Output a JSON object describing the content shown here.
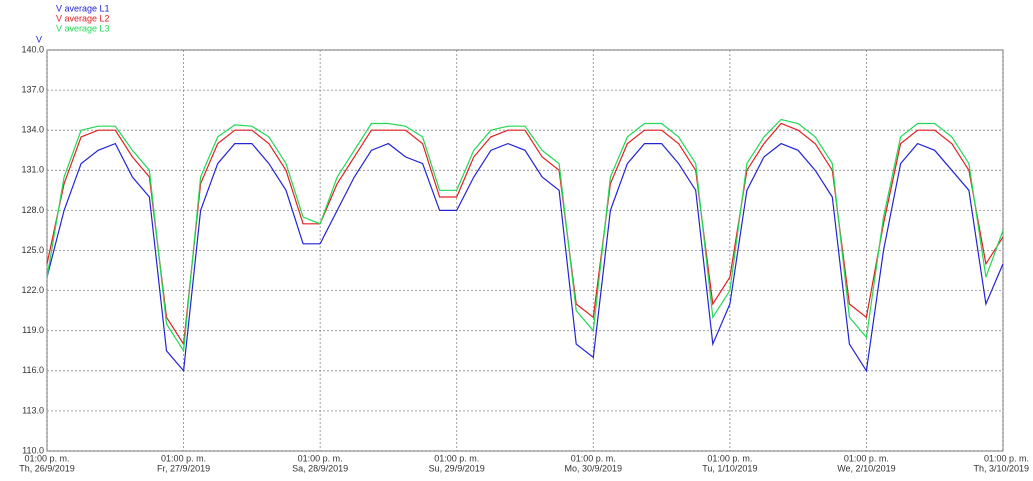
{
  "chart_data": {
    "type": "line",
    "ylabel": "V",
    "x": [
      "2019-09-26 13:00",
      "2019-09-26 16:00",
      "2019-09-26 19:00",
      "2019-09-26 22:00",
      "2019-09-27 01:00",
      "2019-09-27 04:00",
      "2019-09-27 07:00",
      "2019-09-27 10:00",
      "2019-09-27 13:00",
      "2019-09-27 16:00",
      "2019-09-27 19:00",
      "2019-09-27 22:00",
      "2019-09-28 01:00",
      "2019-09-28 04:00",
      "2019-09-28 07:00",
      "2019-09-28 10:00",
      "2019-09-28 13:00",
      "2019-09-28 16:00",
      "2019-09-28 19:00",
      "2019-09-28 22:00",
      "2019-09-29 01:00",
      "2019-09-29 04:00",
      "2019-09-29 07:00",
      "2019-09-29 10:00",
      "2019-09-29 13:00",
      "2019-09-29 16:00",
      "2019-09-29 19:00",
      "2019-09-29 22:00",
      "2019-09-30 01:00",
      "2019-09-30 04:00",
      "2019-09-30 07:00",
      "2019-09-30 10:00",
      "2019-09-30 13:00",
      "2019-09-30 16:00",
      "2019-09-30 19:00",
      "2019-09-30 22:00",
      "2019-10-01 01:00",
      "2019-10-01 04:00",
      "2019-10-01 07:00",
      "2019-10-01 10:00",
      "2019-10-01 13:00",
      "2019-10-01 16:00",
      "2019-10-01 19:00",
      "2019-10-01 22:00",
      "2019-10-02 01:00",
      "2019-10-02 04:00",
      "2019-10-02 07:00",
      "2019-10-02 10:00",
      "2019-10-02 13:00",
      "2019-10-02 16:00",
      "2019-10-02 19:00",
      "2019-10-02 22:00",
      "2019-10-03 01:00",
      "2019-10-03 04:00",
      "2019-10-03 07:00",
      "2019-10-03 10:00",
      "2019-10-03 13:00"
    ],
    "series": [
      {
        "name": "V average L1",
        "color": "#2323d8",
        "values": [
          123,
          128,
          131.5,
          132.5,
          133,
          130.5,
          129,
          117.5,
          116,
          128,
          131.5,
          133,
          133,
          131.5,
          129.5,
          125.5,
          125.5,
          128,
          130.5,
          132.5,
          133,
          132,
          131.5,
          128,
          128,
          130.5,
          132.5,
          133,
          132.5,
          130.5,
          129.5,
          118,
          117,
          128,
          131.5,
          133,
          133,
          131.5,
          129.5,
          118,
          121,
          129.5,
          132,
          133,
          132.5,
          131,
          129,
          118,
          116,
          125,
          131.5,
          133,
          132.5,
          131,
          129.5,
          121,
          124
        ]
      },
      {
        "name": "V average L2",
        "color": "#e02020",
        "values": [
          124,
          130,
          133.5,
          134,
          134,
          132,
          130.5,
          120,
          118,
          130,
          133,
          134,
          134,
          133,
          131,
          127,
          127,
          130,
          132,
          134,
          134,
          134,
          133,
          129,
          129,
          132,
          133.5,
          134,
          134,
          132,
          131,
          121,
          120,
          130,
          133,
          134,
          134,
          133,
          131,
          121,
          123,
          131,
          133,
          134.5,
          134,
          133,
          131,
          121,
          120,
          127,
          133,
          134,
          134,
          133,
          131,
          124,
          126
        ]
      },
      {
        "name": "V average L3",
        "color": "#22d855",
        "values": [
          123,
          130.5,
          134,
          134.3,
          134.3,
          132.5,
          131,
          119.5,
          117.5,
          130.5,
          133.5,
          134.4,
          134.3,
          133.5,
          131.5,
          127.5,
          127,
          130.5,
          132.5,
          134.5,
          134.5,
          134.3,
          133.5,
          129.5,
          129.5,
          132.5,
          134,
          134.3,
          134.3,
          132.5,
          131.5,
          120.5,
          119,
          130.5,
          133.5,
          134.5,
          134.5,
          133.5,
          131.5,
          120,
          122,
          131.5,
          133.5,
          134.8,
          134.5,
          133.5,
          131.5,
          120,
          118.5,
          127.5,
          133.5,
          134.5,
          134.5,
          133.5,
          131.5,
          123,
          126.5
        ]
      }
    ],
    "xlim": [
      "2019-09-26 13:00",
      "2019-10-03 13:00"
    ],
    "xticks": [
      {
        "value": "2019-09-26 13:00",
        "label": [
          "01:00 p. m.",
          "Th, 26/9/2019"
        ]
      },
      {
        "value": "2019-09-27 13:00",
        "label": [
          "01:00 p. m.",
          "Fr, 27/9/2019"
        ]
      },
      {
        "value": "2019-09-28 13:00",
        "label": [
          "01:00 p. m.",
          "Sa, 28/9/2019"
        ]
      },
      {
        "value": "2019-09-29 13:00",
        "label": [
          "01:00 p. m.",
          "Su, 29/9/2019"
        ]
      },
      {
        "value": "2019-09-30 13:00",
        "label": [
          "01:00 p. m.",
          "Mo, 30/9/2019"
        ]
      },
      {
        "value": "2019-10-01 13:00",
        "label": [
          "01:00 p. m.",
          "Tu, 1/10/2019"
        ]
      },
      {
        "value": "2019-10-02 13:00",
        "label": [
          "01:00 p. m.",
          "We, 2/10/2019"
        ]
      },
      {
        "value": "2019-10-03 13:00",
        "label": [
          "01:00 p. m.",
          "Th, 3/10/2019"
        ]
      }
    ],
    "ylim": [
      110,
      140
    ],
    "yticks": [
      {
        "value": 110,
        "label": "110.0"
      },
      {
        "value": 113,
        "label": "113.0"
      },
      {
        "value": 116,
        "label": "116.0"
      },
      {
        "value": 119,
        "label": "119.0"
      },
      {
        "value": 122,
        "label": "122.0"
      },
      {
        "value": 125,
        "label": "125.0"
      },
      {
        "value": 128,
        "label": "128.0"
      },
      {
        "value": 131,
        "label": "131.0"
      },
      {
        "value": 134,
        "label": "134.0"
      },
      {
        "value": 137,
        "label": "137.0"
      },
      {
        "value": 140,
        "label": "140.0"
      }
    ],
    "grid": true
  }
}
